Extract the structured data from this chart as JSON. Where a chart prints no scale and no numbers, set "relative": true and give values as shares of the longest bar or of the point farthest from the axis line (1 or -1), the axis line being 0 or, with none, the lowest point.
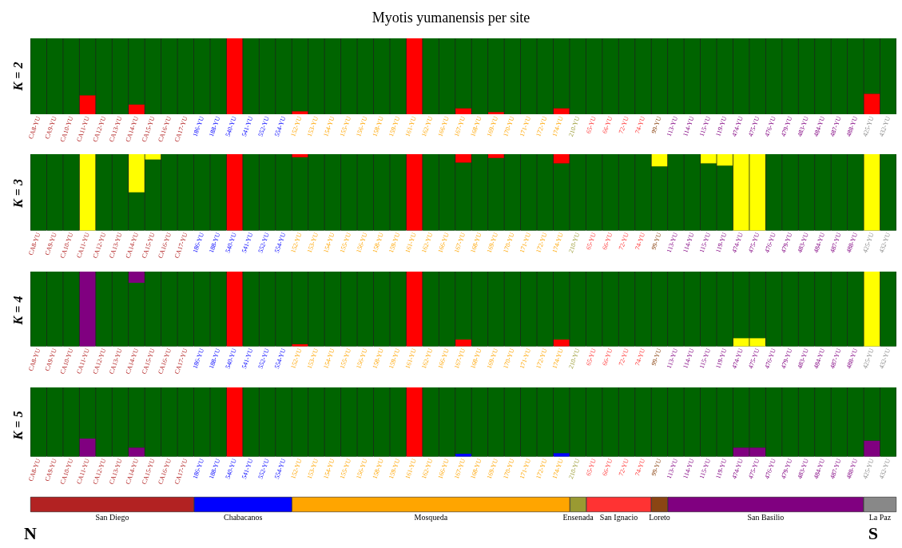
{
  "chart_data": [
    {
      "type": "bar",
      "title": "Myotis yumanensis per site",
      "ylabel": "K = 2",
      "stacked": true,
      "relative": true,
      "tick_labels": "x",
      "categories": [
        "CA8-YU",
        "CA9-YU",
        "CA10-YU",
        "CA11-YU",
        "CA12-YU",
        "CA13-YU",
        "CA14-YU",
        "CA15-YU",
        "CA16-YU",
        "CA17-YU",
        "186-YU",
        "188-YU",
        "540-YU",
        "541-YU",
        "552-YU",
        "554-YU",
        "152-YU",
        "153-YU",
        "154-YU",
        "155-YU",
        "156-YU",
        "158-YU",
        "159-YU",
        "161-YU",
        "162-YU",
        "166-YU",
        "167-YU",
        "168-YU",
        "169-YU",
        "170-YU",
        "171-YU",
        "172-YU",
        "174-YU",
        "210-YU",
        "65-YU",
        "66-YU",
        "72-YU",
        "74-YU",
        "99-YU",
        "113-YU",
        "114-YU",
        "115-YU",
        "119-YU",
        "474-YU",
        "475-YU",
        "476-YU",
        "479-YU",
        "483-YU",
        "484-YU",
        "487-YU",
        "488-YU",
        "425-YU",
        "432-YU"
      ],
      "series": [
        {
          "color": "#ff0000",
          "values": [
            0,
            0,
            0,
            0.25,
            0,
            0,
            0.13,
            0,
            0,
            0,
            0,
            0,
            1,
            0,
            0,
            0,
            0.04,
            0,
            0,
            0,
            0,
            0,
            0,
            1,
            0,
            0,
            0.08,
            0,
            0.03,
            0,
            0,
            0,
            0.08,
            0,
            0,
            0,
            0,
            0,
            0,
            0,
            0,
            0,
            0,
            0,
            0,
            0,
            0,
            0,
            0,
            0,
            0,
            0.27,
            0
          ]
        },
        {
          "color": "#006400",
          "values": [
            1,
            1,
            1,
            0.75,
            1,
            1,
            0.87,
            1,
            1,
            1,
            1,
            1,
            0,
            1,
            1,
            1,
            0.96,
            1,
            1,
            1,
            1,
            1,
            1,
            0,
            1,
            1,
            0.92,
            1,
            0.97,
            1,
            1,
            1,
            0.92,
            1,
            1,
            1,
            1,
            1,
            1,
            1,
            1,
            1,
            1,
            1,
            1,
            1,
            1,
            1,
            1,
            1,
            1,
            0.73,
            1
          ]
        }
      ]
    },
    {
      "type": "bar",
      "ylabel": "K = 3",
      "stacked": true,
      "relative": true,
      "tick_labels": "x",
      "categories": [
        "CA8-YU",
        "CA9-YU",
        "CA10-YU",
        "CA11-YU",
        "CA12-YU",
        "CA13-YU",
        "CA14-YU",
        "CA15-YU",
        "CA16-YU",
        "CA17-YU",
        "186-YU",
        "188-YU",
        "540-YU",
        "541-YU",
        "552-YU",
        "554-YU",
        "152-YU",
        "153-YU",
        "154-YU",
        "155-YU",
        "156-YU",
        "158-YU",
        "159-YU",
        "161-YU",
        "162-YU",
        "166-YU",
        "167-YU",
        "168-YU",
        "169-YU",
        "170-YU",
        "171-YU",
        "172-YU",
        "174-YU",
        "210-YU",
        "65-YU",
        "66-YU",
        "72-YU",
        "74-YU",
        "99-YU",
        "113-YU",
        "114-YU",
        "115-YU",
        "119-YU",
        "474-YU",
        "475-YU",
        "476-YU",
        "479-YU",
        "483-YU",
        "484-YU",
        "487-YU",
        "488-YU",
        "425-YU",
        "432-YU"
      ],
      "series": [
        {
          "color": "#006400",
          "values": [
            1,
            1,
            1,
            0,
            1,
            1,
            0.5,
            0.93,
            1,
            1,
            1,
            1,
            0,
            1,
            1,
            1,
            0.96,
            1,
            1,
            1,
            1,
            1,
            1,
            0,
            1,
            1,
            0.89,
            1,
            0.95,
            1,
            1,
            1,
            0.88,
            1,
            1,
            1,
            1,
            1,
            0.84,
            1,
            1,
            0.88,
            0.85,
            0,
            0,
            1,
            1,
            1,
            1,
            1,
            1,
            0,
            1
          ]
        },
        {
          "color": "#ff0000",
          "values": [
            0,
            0,
            0,
            0,
            0,
            0,
            0,
            0,
            0,
            0,
            0,
            0,
            1,
            0,
            0,
            0,
            0.04,
            0,
            0,
            0,
            0,
            0,
            0,
            1,
            0,
            0,
            0.11,
            0,
            0.05,
            0,
            0,
            0,
            0.12,
            0,
            0,
            0,
            0,
            0,
            0,
            0,
            0,
            0,
            0,
            0,
            0,
            0,
            0,
            0,
            0,
            0,
            0,
            0,
            0
          ]
        },
        {
          "color": "#ffff00",
          "values": [
            0,
            0,
            0,
            1,
            0,
            0,
            0.5,
            0.07,
            0,
            0,
            0,
            0,
            0,
            0,
            0,
            0,
            0,
            0,
            0,
            0,
            0,
            0,
            0,
            0,
            0,
            0,
            0,
            0,
            0,
            0,
            0,
            0,
            0,
            0,
            0,
            0,
            0,
            0,
            0.16,
            0,
            0,
            0.12,
            0.15,
            1,
            1,
            0,
            0,
            0,
            0,
            0,
            0,
            1,
            0
          ]
        }
      ]
    },
    {
      "type": "bar",
      "ylabel": "K = 4",
      "stacked": true,
      "relative": true,
      "tick_labels": "x",
      "categories": [
        "CA8-YU",
        "CA9-YU",
        "CA10-YU",
        "CA11-YU",
        "CA12-YU",
        "CA13-YU",
        "CA14-YU",
        "CA15-YU",
        "CA16-YU",
        "CA17-YU",
        "186-YU",
        "188-YU",
        "540-YU",
        "541-YU",
        "552-YU",
        "554-YU",
        "152-YU",
        "153-YU",
        "154-YU",
        "155-YU",
        "156-YU",
        "158-YU",
        "159-YU",
        "161-YU",
        "162-YU",
        "166-YU",
        "167-YU",
        "168-YU",
        "169-YU",
        "170-YU",
        "171-YU",
        "172-YU",
        "174-YU",
        "210-YU",
        "65-YU",
        "66-YU",
        "72-YU",
        "74-YU",
        "99-YU",
        "113-YU",
        "114-YU",
        "115-YU",
        "119-YU",
        "474-YU",
        "475-YU",
        "476-YU",
        "479-YU",
        "483-YU",
        "484-YU",
        "487-YU",
        "488-YU",
        "425-YU",
        "432-YU"
      ],
      "series": [
        {
          "color": "#ff0000",
          "values": [
            0,
            0,
            0,
            0,
            0,
            0,
            0,
            0,
            0,
            0,
            0,
            0,
            1,
            0,
            0,
            0,
            0.03,
            0,
            0,
            0,
            0,
            0,
            0,
            1,
            0,
            0,
            0.09,
            0,
            0,
            0,
            0,
            0,
            0.09,
            0,
            0,
            0,
            0,
            0,
            0,
            0,
            0,
            0,
            0,
            0,
            0,
            0,
            0,
            0,
            0,
            0,
            0,
            0,
            0
          ]
        },
        {
          "color": "#ffff00",
          "values": [
            0,
            0,
            0,
            0,
            0,
            0,
            0,
            0,
            0,
            0,
            0,
            0,
            0,
            0,
            0,
            0,
            0,
            0,
            0,
            0,
            0,
            0,
            0,
            0,
            0,
            0,
            0,
            0,
            0,
            0,
            0,
            0,
            0,
            0,
            0,
            0,
            0,
            0,
            0,
            0,
            0,
            0,
            0,
            0.11,
            0.11,
            0,
            0,
            0,
            0,
            0,
            0,
            1,
            0
          ]
        },
        {
          "color": "#006400",
          "values": [
            1,
            1,
            1,
            0,
            1,
            1,
            0.85,
            1,
            1,
            1,
            1,
            1,
            0,
            1,
            1,
            1,
            0.97,
            1,
            1,
            1,
            1,
            1,
            1,
            0,
            1,
            1,
            0.91,
            1,
            1,
            1,
            1,
            1,
            0.91,
            1,
            1,
            1,
            1,
            1,
            1,
            1,
            1,
            1,
            1,
            0.89,
            0.89,
            1,
            1,
            1,
            1,
            1,
            1,
            0,
            1
          ]
        },
        {
          "color": "#800080",
          "values": [
            0,
            0,
            0,
            1,
            0,
            0,
            0.15,
            0,
            0,
            0,
            0,
            0,
            0,
            0,
            0,
            0,
            0,
            0,
            0,
            0,
            0,
            0,
            0,
            0,
            0,
            0,
            0,
            0,
            0,
            0,
            0,
            0,
            0,
            0,
            0,
            0,
            0,
            0,
            0,
            0,
            0,
            0,
            0,
            0,
            0,
            0,
            0,
            0,
            0,
            0,
            0,
            0,
            0
          ]
        }
      ]
    },
    {
      "type": "bar",
      "ylabel": "K = 5",
      "stacked": true,
      "relative": true,
      "tick_labels": "x",
      "categories": [
        "CA8-YU",
        "CA9-YU",
        "CA10-YU",
        "CA11-YU",
        "CA12-YU",
        "CA13-YU",
        "CA14-YU",
        "CA15-YU",
        "CA16-YU",
        "CA17-YU",
        "186-YU",
        "188-YU",
        "540-YU",
        "541-YU",
        "552-YU",
        "554-YU",
        "152-YU",
        "153-YU",
        "154-YU",
        "155-YU",
        "156-YU",
        "158-YU",
        "159-YU",
        "161-YU",
        "162-YU",
        "166-YU",
        "167-YU",
        "168-YU",
        "169-YU",
        "170-YU",
        "171-YU",
        "172-YU",
        "174-YU",
        "210-YU",
        "65-YU",
        "66-YU",
        "72-YU",
        "74-YU",
        "99-YU",
        "113-YU",
        "114-YU",
        "115-YU",
        "119-YU",
        "474-YU",
        "475-YU",
        "476-YU",
        "479-YU",
        "483-YU",
        "484-YU",
        "487-YU",
        "488-YU",
        "425-YU",
        "432-YU"
      ],
      "series": [
        {
          "color": "#ff0000",
          "values": [
            0,
            0,
            0,
            0,
            0,
            0,
            0,
            0,
            0,
            0,
            0,
            0,
            1,
            0,
            0,
            0,
            0,
            0,
            0,
            0,
            0,
            0,
            0,
            1,
            0,
            0,
            0,
            0,
            0,
            0,
            0,
            0,
            0,
            0,
            0,
            0,
            0,
            0,
            0,
            0,
            0,
            0,
            0,
            0,
            0,
            0,
            0,
            0,
            0,
            0,
            0,
            0,
            0
          ]
        },
        {
          "color": "#800080",
          "values": [
            0,
            0,
            0,
            0.26,
            0,
            0,
            0.13,
            0,
            0,
            0,
            0,
            0,
            0,
            0,
            0,
            0,
            0,
            0,
            0,
            0,
            0,
            0,
            0,
            0,
            0,
            0,
            0,
            0,
            0,
            0,
            0,
            0,
            0,
            0,
            0,
            0,
            0,
            0,
            0,
            0,
            0,
            0,
            0,
            0.13,
            0.13,
            0,
            0,
            0,
            0,
            0,
            0,
            0.23,
            0
          ]
        },
        {
          "color": "#0000ff",
          "values": [
            0,
            0,
            0,
            0,
            0,
            0,
            0,
            0,
            0,
            0,
            0,
            0,
            0,
            0,
            0,
            0,
            0,
            0,
            0,
            0,
            0,
            0,
            0,
            0,
            0,
            0,
            0.04,
            0,
            0,
            0,
            0,
            0,
            0.05,
            0,
            0,
            0,
            0,
            0,
            0,
            0,
            0,
            0,
            0,
            0,
            0,
            0,
            0,
            0,
            0,
            0,
            0,
            0,
            0
          ]
        },
        {
          "color": "#006400",
          "values": [
            1,
            1,
            1,
            0.74,
            1,
            1,
            0.87,
            1,
            1,
            1,
            1,
            1,
            0,
            1,
            1,
            1,
            1,
            1,
            1,
            1,
            1,
            1,
            1,
            0,
            1,
            1,
            0.96,
            1,
            1,
            1,
            1,
            1,
            0.95,
            1,
            1,
            1,
            1,
            1,
            1,
            1,
            1,
            1,
            1,
            0.87,
            0.87,
            1,
            1,
            1,
            1,
            1,
            1,
            0.77,
            1
          ]
        }
      ]
    },
    {
      "type": "bar",
      "orientation": "horizontal",
      "stacked": true,
      "relative": true,
      "tick_labels": false,
      "categories": [
        null
      ],
      "annotations": [
        "N",
        "S"
      ],
      "series": [
        {
          "name": "San Diego",
          "color": "#b22222",
          "values": [
            0.189
          ]
        },
        {
          "name": "Chabacanos",
          "color": "#0000ff",
          "values": [
            0.113
          ]
        },
        {
          "name": "Mosqueda",
          "color": "#ffa500",
          "values": [
            0.321
          ]
        },
        {
          "name": "Ensenada",
          "color": "#9a9a32",
          "values": [
            0.019
          ]
        },
        {
          "name": "San Ignacio",
          "color": "#ff3333",
          "values": [
            0.075
          ]
        },
        {
          "name": "Loreto",
          "color": "#8b4513",
          "values": [
            0.019
          ]
        },
        {
          "name": "San Basilio",
          "color": "#800080",
          "values": [
            0.226
          ]
        },
        {
          "name": "La Paz",
          "color": "#888888",
          "values": [
            0.038
          ]
        }
      ]
    }
  ]
}
